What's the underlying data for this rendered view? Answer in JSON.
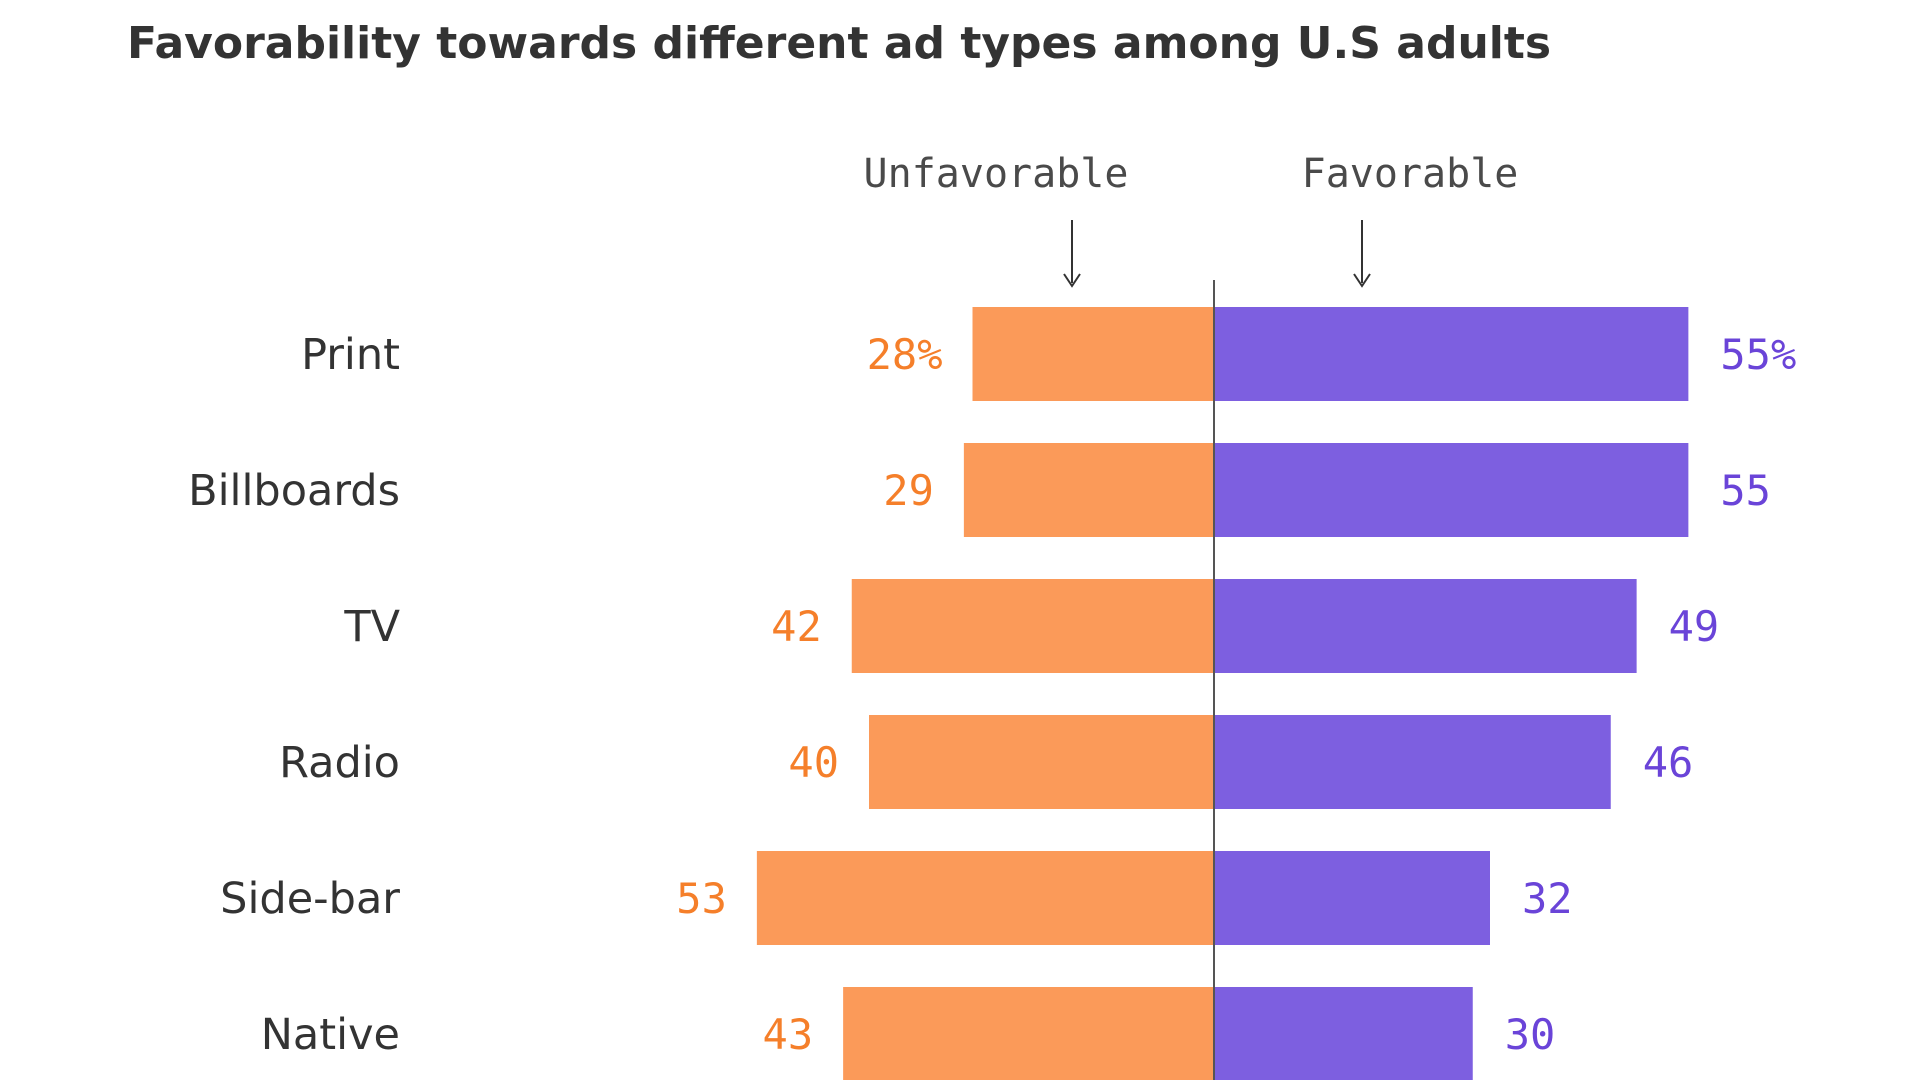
{
  "chart_data": {
    "type": "bar",
    "title": "Favorability towards different ad types among U.S adults",
    "categories": [
      "Print",
      "Billboards",
      "TV",
      "Radio",
      "Side-bar",
      "Native"
    ],
    "series": [
      {
        "name": "Unfavorable",
        "values": [
          28,
          29,
          42,
          40,
          53,
          43
        ],
        "value_labels": [
          "28%",
          "29",
          "42",
          "40",
          "53",
          "43"
        ],
        "color": "#fb9a59",
        "label_color": "#f57f2a"
      },
      {
        "name": "Favorable",
        "values": [
          55,
          55,
          49,
          46,
          32,
          30
        ],
        "value_labels": [
          "55%",
          "55",
          "49",
          "46",
          "32",
          "30"
        ],
        "color": "#7d5fe0",
        "label_color": "#6a44d8"
      }
    ],
    "xlabel": "",
    "ylabel": "",
    "orientation": "horizontal-diverging",
    "grid": false,
    "legend": "top"
  }
}
